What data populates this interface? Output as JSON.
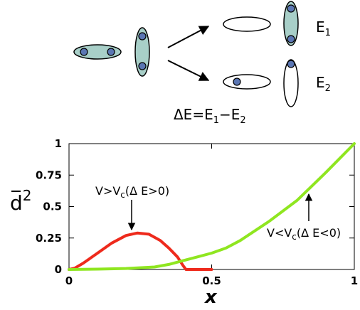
{
  "schematic": {
    "state_labels": {
      "e1_main": "E",
      "e1_sub": "1",
      "e2_main": "E",
      "e2_sub": "2"
    },
    "equation": {
      "delta": "ΔE=E",
      "sub1": "1",
      "minus": "−E",
      "sub2": "2"
    },
    "colors": {
      "ellipse_fill": "#a8cfc8",
      "dot_fill": "#5b76b3",
      "outline": "#000000"
    }
  },
  "chart_data": {
    "type": "line",
    "xlabel": "x",
    "ylabel_main": "d",
    "ylabel_sup": "2",
    "xlim": [
      0,
      1
    ],
    "ylim": [
      0,
      1
    ],
    "x_ticks": [
      0,
      0.5,
      1
    ],
    "x_tick_labels": [
      "0",
      "0.5",
      "1"
    ],
    "y_ticks": [
      0,
      0.25,
      0.5,
      0.75,
      1
    ],
    "y_tick_labels": [
      "0",
      "0.25",
      "0.5",
      "0.75",
      "1"
    ],
    "grid": false,
    "series": [
      {
        "color": "#ee2a1c",
        "x": [
          0,
          0.02,
          0.05,
          0.1,
          0.15,
          0.2,
          0.24,
          0.28,
          0.32,
          0.35,
          0.38,
          0.4,
          0.41,
          0.42,
          0.44,
          0.5
        ],
        "y": [
          0,
          0.01,
          0.05,
          0.13,
          0.21,
          0.27,
          0.29,
          0.28,
          0.23,
          0.17,
          0.1,
          0.03,
          0.0,
          0.0,
          0.0,
          0.0
        ]
      },
      {
        "color": "#8fe620",
        "x": [
          0,
          0.1,
          0.2,
          0.3,
          0.35,
          0.4,
          0.45,
          0.5,
          0.55,
          0.6,
          0.7,
          0.8,
          0.9,
          1.0
        ],
        "y": [
          0,
          0.003,
          0.008,
          0.02,
          0.04,
          0.07,
          0.1,
          0.13,
          0.17,
          0.23,
          0.38,
          0.55,
          0.77,
          1.0
        ]
      }
    ],
    "annotations": [
      {
        "prefix": "V>V",
        "sub": "c",
        "suffix": "(Δ E>0)",
        "arrow_to": [
          0.22,
          0.3
        ]
      },
      {
        "prefix": "V<V",
        "sub": "c",
        "suffix": "(Δ E<0)",
        "arrow_to": [
          0.84,
          0.62
        ]
      }
    ]
  }
}
